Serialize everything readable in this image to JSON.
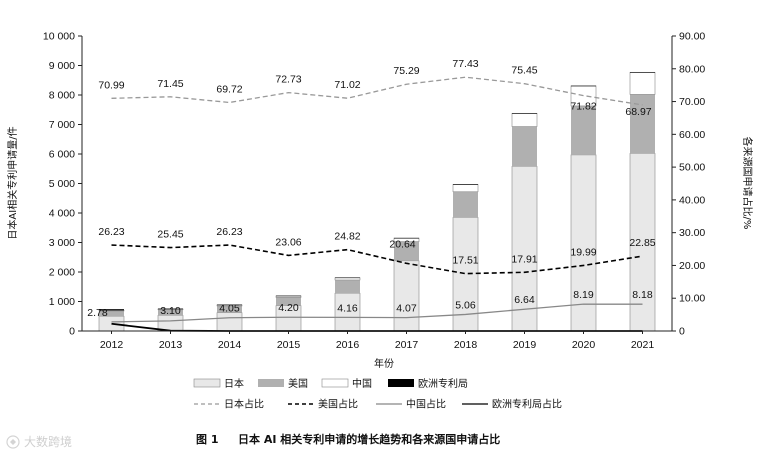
{
  "chart_data": {
    "type": "bar",
    "title": "日本 AI 相关专利申请的增长趋势和各来源国申请占比",
    "caption_prefix": "图 1",
    "xlabel": "年份",
    "ylabel_left": "日本AI相关专利申请量/件",
    "ylabel_right": "各来源国申请占比/%",
    "categories": [
      "2012",
      "2013",
      "2014",
      "2015",
      "2016",
      "2017",
      "2018",
      "2019",
      "2020",
      "2021"
    ],
    "ylim_left": [
      0,
      10000
    ],
    "yticks_left": [
      0,
      1000,
      2000,
      3000,
      4000,
      5000,
      6000,
      7000,
      8000,
      9000,
      10000
    ],
    "ytick_labels_left": [
      "0",
      "1 000",
      "2 000",
      "3 000",
      "4 000",
      "5 000",
      "6 000",
      "7 000",
      "8 000",
      "9 000",
      "10 000"
    ],
    "ylim_right": [
      0,
      90
    ],
    "yticks_right": [
      0,
      10,
      20,
      30,
      40,
      50,
      60,
      70,
      80,
      90
    ],
    "ytick_labels_right": [
      "0",
      "10.00",
      "20.00",
      "30.00",
      "40.00",
      "50.00",
      "60.00",
      "70.00",
      "80.00",
      "90.00"
    ],
    "bar_series": [
      {
        "name": "日本",
        "color": "#e8e8e8",
        "values": [
          500,
          530,
          620,
          860,
          1280,
          2380,
          3850,
          5580,
          5970,
          6020
        ]
      },
      {
        "name": "美国",
        "color": "#b0b0b0",
        "values": [
          180,
          190,
          230,
          280,
          450,
          650,
          870,
          1350,
          1660,
          2000
        ]
      },
      {
        "name": "中国",
        "color": "#ffffff",
        "values": [
          20,
          25,
          35,
          50,
          75,
          120,
          250,
          450,
          680,
          750
        ]
      },
      {
        "name": "欧洲专利局",
        "color": "#000000",
        "values": [
          40,
          15,
          10,
          8,
          8,
          6,
          5,
          5,
          5,
          5
        ]
      }
    ],
    "line_series": [
      {
        "name": "日本占比",
        "color": "#999999",
        "style": "dashed",
        "values": [
          70.99,
          71.45,
          69.72,
          72.73,
          71.02,
          75.29,
          77.43,
          75.45,
          71.82,
          68.97
        ],
        "labels": [
          "70.99",
          "71.45",
          "69.72",
          "72.73",
          "71.02",
          "75.29",
          "77.43",
          "75.45",
          "71.82",
          "68.97"
        ]
      },
      {
        "name": "美国占比",
        "color": "#000000",
        "style": "dashed",
        "values": [
          26.23,
          25.45,
          26.23,
          23.06,
          24.82,
          20.64,
          17.51,
          17.91,
          19.99,
          22.85
        ],
        "labels": [
          "26.23",
          "25.45",
          "26.23",
          "23.06",
          "24.82",
          "20.64",
          "17.51",
          "17.91",
          "19.99",
          "22.85"
        ]
      },
      {
        "name": "中国占比",
        "color": "#888888",
        "style": "solid",
        "values": [
          2.78,
          3.1,
          4.05,
          4.2,
          4.16,
          4.07,
          5.06,
          6.64,
          8.19,
          8.18
        ],
        "labels": [
          "2.78",
          "3.10",
          "4.05",
          "4.20",
          "4.16",
          "4.07",
          "5.06",
          "6.64",
          "8.19",
          "8.18"
        ]
      },
      {
        "name": "欧洲专利局占比",
        "color": "#000000",
        "style": "solid",
        "values": [
          2.2,
          0.1,
          0,
          0,
          0,
          0,
          0,
          0,
          0,
          0
        ]
      }
    ],
    "legend_position": "bottom"
  },
  "watermark": "大数跨境"
}
